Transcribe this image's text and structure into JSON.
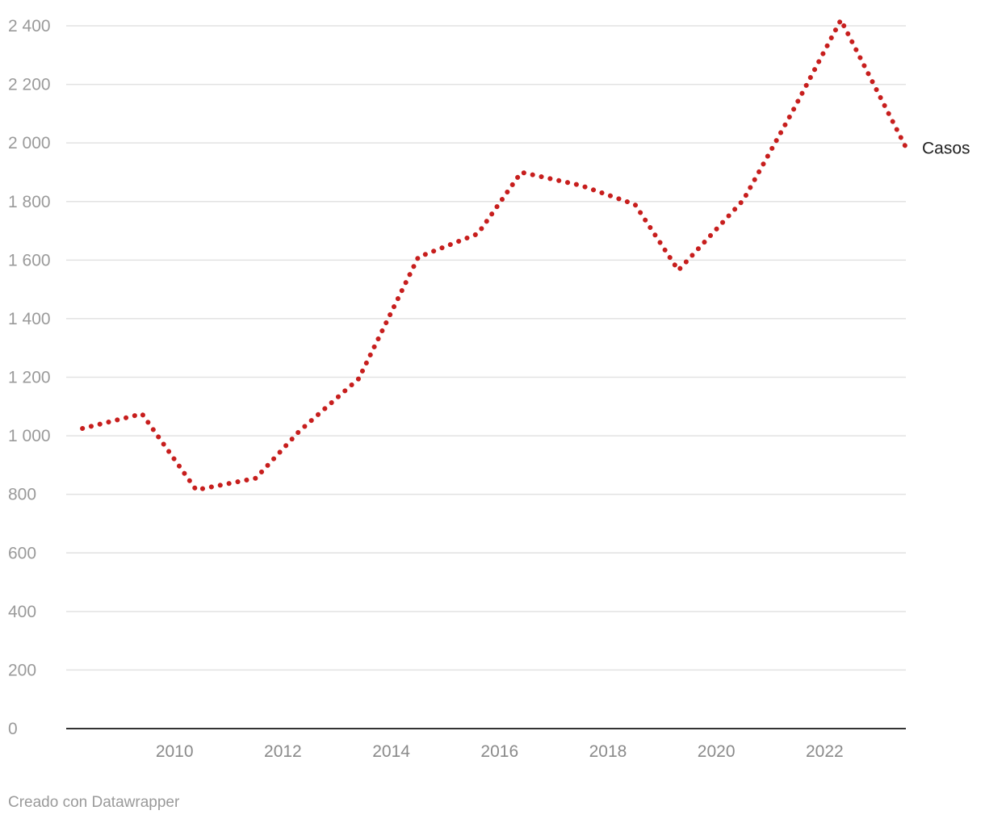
{
  "chart_data": {
    "type": "line",
    "title": "",
    "xlabel": "",
    "ylabel": "",
    "xlim": [
      2008,
      2023.5
    ],
    "ylim": [
      0,
      2400
    ],
    "yticks": [
      0,
      200,
      400,
      600,
      800,
      1000,
      1200,
      1400,
      1600,
      1800,
      2000,
      2200,
      2400
    ],
    "ytick_labels": [
      "0",
      "200",
      "400",
      "600",
      "800",
      "1 000",
      "1 200",
      "1 400",
      "1 600",
      "1 800",
      "2 000",
      "2 200",
      "2 400"
    ],
    "xticks": [
      2010,
      2012,
      2014,
      2016,
      2018,
      2020,
      2022
    ],
    "xtick_labels": [
      "2010",
      "2012",
      "2014",
      "2016",
      "2018",
      "2020",
      "2022"
    ],
    "grid": true,
    "line_style": "dotted",
    "series": [
      {
        "name": "Casos",
        "color": "#c71e1d",
        "x": [
          2008.3,
          2009.4,
          2010.4,
          2011.5,
          2012.3,
          2013.4,
          2014.5,
          2015.6,
          2016.4,
          2017.5,
          2018.5,
          2019.3,
          2020.5,
          2021.4,
          2022.3,
          2023.5
        ],
        "values": [
          1025,
          1075,
          815,
          855,
          1015,
          1195,
          1610,
          1690,
          1900,
          1855,
          1790,
          1565,
          1805,
          2105,
          2420,
          1985
        ]
      }
    ]
  },
  "footer": {
    "credit": "Creado con Datawrapper"
  }
}
